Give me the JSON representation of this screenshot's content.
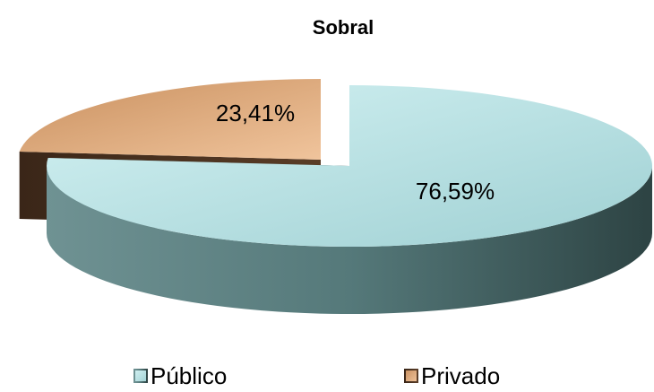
{
  "chart_data": {
    "type": "pie",
    "title": "Sobral",
    "categories": [
      "Público",
      "Privado"
    ],
    "values": [
      76.59,
      23.41
    ],
    "value_labels": [
      "76,59%",
      "23,41%"
    ],
    "colors": [
      "#b8e3e5",
      "#dba57a"
    ],
    "legend": "bottom"
  }
}
